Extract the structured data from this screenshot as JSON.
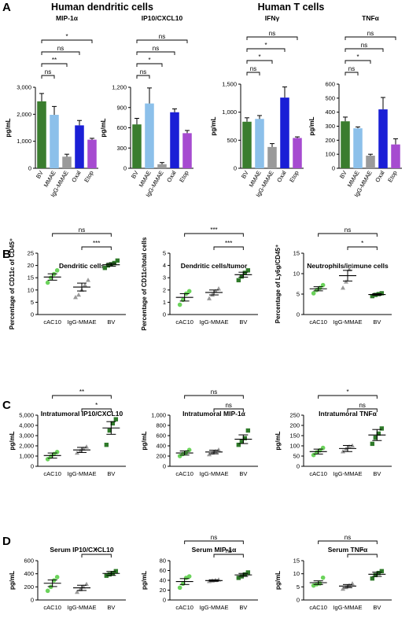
{
  "figure": {
    "panel_labels": [
      "A",
      "B",
      "C",
      "D"
    ],
    "panel_a_titles": {
      "dendritic": "Human dendritic cells",
      "tcells": "Human T cells"
    }
  },
  "chart_data": [
    {
      "id": "a1",
      "type": "bar",
      "panel": "A",
      "title": "MIP-1α",
      "ylabel": "pg/mL",
      "categories": [
        "BV",
        "MMAE",
        "IgG-MMAE",
        "Oxal",
        "Etop"
      ],
      "values": [
        2480,
        1980,
        430,
        1590,
        1060
      ],
      "errors": [
        290,
        310,
        90,
        180,
        50
      ],
      "ylim": [
        0,
        3000
      ],
      "yticks": [
        0,
        1000,
        2000,
        3000
      ],
      "ytick_labels": [
        "0",
        "1,000",
        "2,000",
        "3,000"
      ],
      "bar_colors": [
        "#3a7d2e",
        "#8cc0ea",
        "#9a9a9a",
        "#1a1fd6",
        "#a64bd0"
      ],
      "comparisons": [
        {
          "to": "MMAE",
          "label": "ns"
        },
        {
          "to": "IgG-MMAE",
          "label": "**"
        },
        {
          "to": "Oxal",
          "label": "ns"
        },
        {
          "to": "Etop",
          "label": "*"
        }
      ]
    },
    {
      "id": "a2",
      "type": "bar",
      "panel": "A",
      "title": "IP10/CXCL10",
      "ylabel": "pg/mL",
      "categories": [
        "BV",
        "MMAE",
        "IgG-MMAE",
        "Oxal",
        "Etop"
      ],
      "values": [
        650,
        960,
        60,
        830,
        520
      ],
      "errors": [
        90,
        230,
        25,
        50,
        40
      ],
      "ylim": [
        0,
        1200
      ],
      "yticks": [
        0,
        300,
        600,
        900,
        1200
      ],
      "ytick_labels": [
        "0",
        "300",
        "600",
        "900",
        "1,200"
      ],
      "bar_colors": [
        "#3a7d2e",
        "#8cc0ea",
        "#9a9a9a",
        "#1a1fd6",
        "#a64bd0"
      ],
      "comparisons": [
        {
          "to": "MMAE",
          "label": "ns"
        },
        {
          "to": "IgG-MMAE",
          "label": "*"
        },
        {
          "to": "Oxal",
          "label": "ns"
        },
        {
          "to": "Etop",
          "label": "ns"
        }
      ]
    },
    {
      "id": "a3",
      "type": "bar",
      "panel": "A",
      "title": "IFNγ",
      "ylabel": "pg/mL",
      "categories": [
        "BV",
        "MMAE",
        "IgG-MMAE",
        "Oxal",
        "Etop"
      ],
      "values": [
        830,
        880,
        380,
        1260,
        540
      ],
      "errors": [
        70,
        60,
        60,
        190,
        20
      ],
      "ylim": [
        0,
        1500
      ],
      "yticks": [
        0,
        500,
        1000,
        1500
      ],
      "ytick_labels": [
        "0",
        "500",
        "1,000",
        "1,500"
      ],
      "bar_colors": [
        "#3a7d2e",
        "#8cc0ea",
        "#9a9a9a",
        "#1a1fd6",
        "#a64bd0"
      ],
      "comparisons": [
        {
          "to": "MMAE",
          "label": "ns"
        },
        {
          "to": "IgG-MMAE",
          "label": "*"
        },
        {
          "to": "Oxal",
          "label": "*"
        },
        {
          "to": "Etop",
          "label": "ns"
        }
      ]
    },
    {
      "id": "a4",
      "type": "bar",
      "panel": "A",
      "title": "TNFα",
      "ylabel": "pg/mL",
      "categories": [
        "BV",
        "MMAE",
        "IgG-MMAE",
        "Oxal",
        "Etop"
      ],
      "values": [
        335,
        285,
        90,
        420,
        170
      ],
      "errors": [
        30,
        10,
        10,
        85,
        40
      ],
      "ylim": [
        0,
        600
      ],
      "yticks": [
        0,
        100,
        200,
        300,
        400,
        500,
        600
      ],
      "ytick_labels": [
        "0",
        "100",
        "200",
        "300",
        "400",
        "500",
        "600"
      ],
      "bar_colors": [
        "#3a7d2e",
        "#8cc0ea",
        "#9a9a9a",
        "#1a1fd6",
        "#a64bd0"
      ],
      "comparisons": [
        {
          "to": "MMAE",
          "label": "ns"
        },
        {
          "to": "IgG-MMAE",
          "label": "*"
        },
        {
          "to": "Oxal",
          "label": "ns"
        },
        {
          "to": "Etop",
          "label": "ns"
        }
      ]
    },
    {
      "id": "b1",
      "type": "scatter",
      "panel": "B",
      "title": "Dendritic cells",
      "ylabel": "Percentage of CD11c of CD45⁺",
      "categories": [
        "cAC10",
        "IgG-MMAE",
        "BV"
      ],
      "points": [
        [
          13,
          15,
          16.5,
          18
        ],
        [
          7,
          8,
          10,
          12,
          14
        ],
        [
          19,
          20,
          20.5,
          21,
          22
        ]
      ],
      "mean": [
        15.3,
        11.2,
        20.3
      ],
      "sem": [
        1.3,
        1.6,
        0.6
      ],
      "ylim": [
        0,
        25
      ],
      "yticks": [
        0,
        5,
        10,
        15,
        20,
        25
      ],
      "ytick_labels": [
        "0",
        "5",
        "10",
        "15",
        "20",
        "25"
      ],
      "brackets": [
        {
          "from": "cAC10",
          "to": "BV",
          "label": "ns",
          "level": 2
        },
        {
          "from": "IgG-MMAE",
          "to": "BV",
          "label": "***",
          "level": 1
        }
      ]
    },
    {
      "id": "b2",
      "type": "scatter",
      "panel": "B",
      "title": "Dendritic cells/tumor",
      "ylabel": "Percentage of CD11c/total cells",
      "categories": [
        "cAC10",
        "IgG-MMAE",
        "BV"
      ],
      "points": [
        [
          0.8,
          1.2,
          1.7,
          1.9
        ],
        [
          1.3,
          1.6,
          1.9,
          2.1
        ],
        [
          2.8,
          3.1,
          3.4,
          3.6
        ]
      ],
      "mean": [
        1.4,
        1.8,
        3.25
      ],
      "sem": [
        0.3,
        0.2,
        0.2
      ],
      "ylim": [
        0,
        5
      ],
      "yticks": [
        0,
        1,
        2,
        3,
        4,
        5
      ],
      "ytick_labels": [
        "0",
        "1",
        "2",
        "3",
        "4",
        "5"
      ],
      "brackets": [
        {
          "from": "cAC10",
          "to": "BV",
          "label": "***",
          "level": 2
        },
        {
          "from": "IgG-MMAE",
          "to": "BV",
          "label": "***",
          "level": 1
        }
      ]
    },
    {
      "id": "b3",
      "type": "scatter",
      "panel": "B",
      "title": "Neutrophils/immune cells",
      "ylabel": "Percentage of Ly6g/CD45⁺",
      "categories": [
        "cAC10",
        "IgG-MMAE",
        "BV"
      ],
      "points": [
        [
          5.2,
          6,
          6.5,
          7.2
        ],
        [
          6.5,
          8,
          11,
          12
        ],
        [
          4.5,
          4.8,
          5,
          5.2
        ]
      ],
      "mean": [
        6.3,
        9.5,
        4.9
      ],
      "sem": [
        0.5,
        1.3,
        0.2
      ],
      "ylim": [
        0,
        15
      ],
      "yticks": [
        0,
        5,
        10,
        15
      ],
      "ytick_labels": [
        "0",
        "5",
        "10",
        "15"
      ],
      "brackets": [
        {
          "from": "cAC10",
          "to": "BV",
          "label": "ns",
          "level": 2
        },
        {
          "from": "IgG-MMAE",
          "to": "BV",
          "label": "*",
          "level": 1
        }
      ]
    },
    {
      "id": "c1",
      "type": "scatter",
      "panel": "C",
      "title": "Intratumoral IP10/CXCL10",
      "ylabel": "pg/mL",
      "categories": [
        "cAC10",
        "IgG-MMAE",
        "BV"
      ],
      "points": [
        [
          700,
          950,
          1200,
          1400
        ],
        [
          1300,
          1500,
          1700,
          1900
        ],
        [
          2100,
          3500,
          4200,
          4600
        ]
      ],
      "mean": [
        1050,
        1600,
        3750
      ],
      "sem": [
        250,
        250,
        620
      ],
      "ylim": [
        0,
        5000
      ],
      "yticks": [
        0,
        1000,
        2000,
        3000,
        4000,
        5000
      ],
      "ytick_labels": [
        "0",
        "1,000",
        "2,000",
        "3,000",
        "4,000",
        "5,000"
      ],
      "brackets": [
        {
          "from": "cAC10",
          "to": "BV",
          "label": "**",
          "level": 2
        },
        {
          "from": "IgG-MMAE",
          "to": "BV",
          "label": "*",
          "level": 1
        }
      ]
    },
    {
      "id": "c2",
      "type": "scatter",
      "panel": "C",
      "title": "Intratumoral MIP-1α",
      "ylabel": "pg/mL",
      "categories": [
        "cAC10",
        "IgG-MMAE",
        "BV"
      ],
      "points": [
        [
          200,
          240,
          270,
          320
        ],
        [
          230,
          260,
          290,
          320
        ],
        [
          420,
          480,
          550,
          700
        ]
      ],
      "mean": [
        260,
        280,
        530
      ],
      "sem": [
        40,
        35,
        85
      ],
      "ylim": [
        0,
        1000
      ],
      "yticks": [
        0,
        200,
        400,
        600,
        800,
        1000
      ],
      "ytick_labels": [
        "0",
        "200",
        "400",
        "600",
        "800",
        "1,000"
      ],
      "brackets": [
        {
          "from": "cAC10",
          "to": "BV",
          "label": "ns",
          "level": 2
        },
        {
          "from": "IgG-MMAE",
          "to": "BV",
          "label": "ns",
          "level": 1
        }
      ]
    },
    {
      "id": "c3",
      "type": "scatter",
      "panel": "C",
      "title": "Intratumoral TNFα",
      "ylabel": "pg/mL",
      "categories": [
        "cAC10",
        "IgG-MMAE",
        "BV"
      ],
      "points": [
        [
          55,
          68,
          78,
          90
        ],
        [
          72,
          85,
          95,
          100
        ],
        [
          110,
          140,
          160,
          185
        ]
      ],
      "mean": [
        72,
        87,
        153
      ],
      "sem": [
        12,
        15,
        27
      ],
      "ylim": [
        0,
        250
      ],
      "yticks": [
        0,
        50,
        100,
        150,
        200,
        250
      ],
      "ytick_labels": [
        "0",
        "50",
        "100",
        "150",
        "200",
        "250"
      ],
      "brackets": [
        {
          "from": "cAC10",
          "to": "BV",
          "label": "*",
          "level": 2
        },
        {
          "from": "IgG-MMAE",
          "to": "BV",
          "label": "ns",
          "level": 1
        }
      ]
    },
    {
      "id": "d1",
      "type": "scatter",
      "panel": "D",
      "title": "Serum IP10/CXCL10",
      "ylabel": "pg/mL",
      "categories": [
        "cAC10",
        "IgG-MMAE",
        "BV"
      ],
      "points": [
        [
          140,
          200,
          300,
          350
        ],
        [
          120,
          160,
          200,
          240
        ],
        [
          370,
          390,
          410,
          440
        ]
      ],
      "mean": [
        255,
        185,
        405
      ],
      "sem": [
        50,
        40,
        30
      ],
      "ylim": [
        0,
        600
      ],
      "yticks": [
        0,
        200,
        400,
        600
      ],
      "ytick_labels": [
        "0",
        "200",
        "400",
        "600"
      ],
      "brackets": [
        {
          "from": "IgG-MMAE",
          "to": "BV",
          "label": "*",
          "level": 1
        }
      ]
    },
    {
      "id": "d2",
      "type": "scatter",
      "panel": "D",
      "title": "Serum MIP-1α",
      "ylabel": "pg/mL",
      "categories": [
        "cAC10",
        "IgG-MMAE",
        "BV"
      ],
      "points": [
        [
          25,
          33,
          45,
          48
        ],
        [
          38,
          39,
          40,
          41
        ],
        [
          45,
          48,
          52,
          56
        ]
      ],
      "mean": [
        37.5,
        39.5,
        51
      ],
      "sem": [
        6,
        1.5,
        3
      ],
      "ylim": [
        0,
        80
      ],
      "yticks": [
        0,
        20,
        40,
        60,
        80
      ],
      "ytick_labels": [
        "0",
        "20",
        "40",
        "60",
        "80"
      ],
      "brackets": [
        {
          "from": "cAC10",
          "to": "BV",
          "label": "ns",
          "level": 2
        },
        {
          "from": "IgG-MMAE",
          "to": "BV",
          "label": "ns",
          "level": 1
        }
      ]
    },
    {
      "id": "d3",
      "type": "scatter",
      "panel": "D",
      "title": "Serum TNFα",
      "ylabel": "pg/mL",
      "categories": [
        "cAC10",
        "IgG-MMAE",
        "BV"
      ],
      "points": [
        [
          5.5,
          6,
          6.3,
          8.5
        ],
        [
          4.2,
          4.8,
          5.5,
          6.2
        ],
        [
          8.2,
          9.5,
          10.3,
          11
        ]
      ],
      "mean": [
        6.6,
        5.3,
        9.8
      ],
      "sem": [
        0.7,
        0.6,
        0.8
      ],
      "ylim": [
        0,
        15
      ],
      "yticks": [
        0,
        5,
        10,
        15
      ],
      "ytick_labels": [
        "0",
        "5",
        "10",
        "15"
      ],
      "brackets": [
        {
          "from": "cAC10",
          "to": "BV",
          "label": "ns",
          "level": 2
        },
        {
          "from": "IgG-MMAE",
          "to": "BV",
          "label": "*",
          "level": 1
        }
      ]
    }
  ],
  "colors": {
    "bar_colors": [
      "#3a7d2e",
      "#8cc0ea",
      "#9a9a9a",
      "#1a1fd6",
      "#a64bd0"
    ],
    "scatter_colors": [
      "#6bd35b",
      "#9a9a9a",
      "#2f7a2a"
    ]
  }
}
